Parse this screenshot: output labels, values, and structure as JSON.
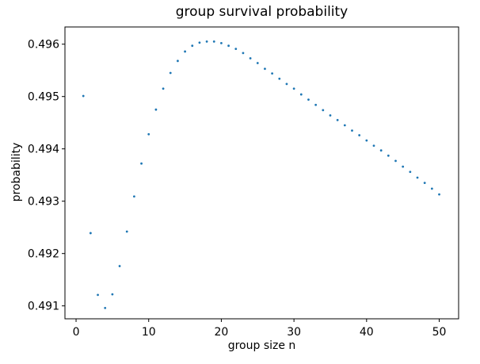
{
  "page": {
    "background": "#ffffff"
  },
  "chart_data": {
    "type": "scatter",
    "title": "group survival probability",
    "xlabel": "group size n",
    "ylabel": "probability",
    "x": [
      1,
      2,
      3,
      4,
      5,
      6,
      7,
      8,
      9,
      10,
      11,
      12,
      13,
      14,
      15,
      16,
      17,
      18,
      19,
      20,
      21,
      22,
      23,
      24,
      25,
      26,
      27,
      28,
      29,
      30,
      31,
      32,
      33,
      34,
      35,
      36,
      37,
      38,
      39,
      40,
      41,
      42,
      43,
      44,
      45,
      46,
      47,
      48,
      49,
      50
    ],
    "y": [
      0.49501,
      0.49239,
      0.49121,
      0.49096,
      0.49122,
      0.49176,
      0.49242,
      0.49309,
      0.49372,
      0.49428,
      0.49475,
      0.49515,
      0.49545,
      0.49568,
      0.49586,
      0.49597,
      0.49603,
      0.49605,
      0.49605,
      0.49602,
      0.49597,
      0.49591,
      0.49583,
      0.49573,
      0.49564,
      0.49553,
      0.49544,
      0.49534,
      0.49524,
      0.49515,
      0.49504,
      0.49494,
      0.49484,
      0.49474,
      0.49464,
      0.49455,
      0.49445,
      0.49435,
      0.49426,
      0.49416,
      0.49406,
      0.49397,
      0.49387,
      0.49377,
      0.49366,
      0.49356,
      0.49345,
      0.49335,
      0.49324,
      0.49313
    ],
    "xticks": [
      0,
      10,
      20,
      30,
      40,
      50
    ],
    "yticks": [
      0.491,
      0.492,
      0.493,
      0.494,
      0.495,
      0.496
    ],
    "ytick_decimals": 3,
    "xlim": [
      -1.53,
      52.67
    ],
    "ylim": [
      0.490753,
      0.496329
    ],
    "grid": false,
    "legend": "none",
    "marker_color": "#1f77b4",
    "axis_color": "#000000",
    "text_color": "#000000"
  }
}
